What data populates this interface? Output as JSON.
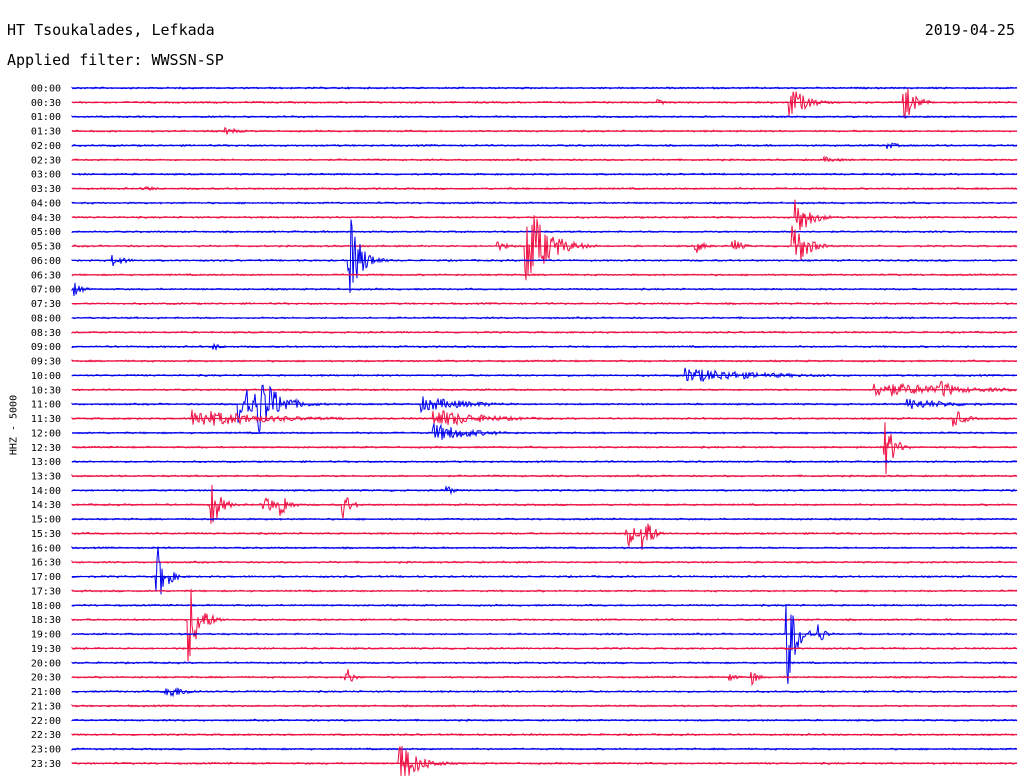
{
  "header": {
    "station": "HT Tsoukalades, Lefkada",
    "filter": "Applied filter: WWSSN-SP",
    "date": "2019-04-25"
  },
  "chart_data": {
    "type": "line",
    "title": "HT Tsoukalades, Lefkada",
    "subtitle": "Applied filter: WWSSN-SP",
    "ylabel": "HHZ - 5000",
    "colors": {
      "even_rows": "#0000ee",
      "odd_rows": "#ee1144"
    },
    "rows": [
      "00:00",
      "00:30",
      "01:00",
      "01:30",
      "02:00",
      "02:30",
      "03:00",
      "03:30",
      "04:00",
      "04:30",
      "05:00",
      "05:30",
      "06:00",
      "06:30",
      "07:00",
      "07:30",
      "08:00",
      "08:30",
      "09:00",
      "09:30",
      "10:00",
      "10:30",
      "11:00",
      "11:30",
      "12:00",
      "12:30",
      "13:00",
      "13:30",
      "14:00",
      "14:30",
      "15:00",
      "15:30",
      "16:00",
      "16:30",
      "17:00",
      "17:30",
      "18:00",
      "18:30",
      "19:00",
      "19:30",
      "20:00",
      "20:30",
      "21:00",
      "21:30",
      "22:00",
      "22:30",
      "23:00",
      "23:30"
    ],
    "events": [
      {
        "row": "00:30",
        "minute": 22.8,
        "amplitude": 18,
        "duration": 1.2
      },
      {
        "row": "00:30",
        "minute": 26.4,
        "amplitude": 22,
        "duration": 0.8
      },
      {
        "row": "00:30",
        "minute": 18.6,
        "amplitude": 3,
        "duration": 0.6
      },
      {
        "row": "01:30",
        "minute": 4.9,
        "amplitude": 4,
        "duration": 1.0
      },
      {
        "row": "02:00",
        "minute": 25.9,
        "amplitude": 4,
        "duration": 0.8
      },
      {
        "row": "02:30",
        "minute": 23.9,
        "amplitude": 3,
        "duration": 1.5
      },
      {
        "row": "03:30",
        "minute": 2.3,
        "amplitude": 4,
        "duration": 0.7
      },
      {
        "row": "04:30",
        "minute": 23.0,
        "amplitude": 22,
        "duration": 1.0
      },
      {
        "row": "05:30",
        "minute": 14.4,
        "amplitude": 50,
        "duration": 1.6
      },
      {
        "row": "05:30",
        "minute": 14.6,
        "amplitude": 12,
        "duration": 1.2
      },
      {
        "row": "05:30",
        "minute": 22.9,
        "amplitude": 30,
        "duration": 0.9
      },
      {
        "row": "05:30",
        "minute": 19.8,
        "amplitude": 8,
        "duration": 0.6
      },
      {
        "row": "05:30",
        "minute": 21.0,
        "amplitude": 8,
        "duration": 0.6
      },
      {
        "row": "05:30",
        "minute": 13.5,
        "amplitude": 5,
        "duration": 1.0
      },
      {
        "row": "06:00",
        "minute": 8.8,
        "amplitude": 50,
        "duration": 0.8
      },
      {
        "row": "06:00",
        "minute": 1.3,
        "amplitude": 6,
        "duration": 1.0
      },
      {
        "row": "07:00",
        "minute": 0.1,
        "amplitude": 8,
        "duration": 0.5
      },
      {
        "row": "09:00",
        "minute": 4.5,
        "amplitude": 4,
        "duration": 0.6
      },
      {
        "row": "10:00",
        "minute": 19.5,
        "amplitude": 8,
        "duration": 6.0
      },
      {
        "row": "10:00",
        "minute": 31.0,
        "amplitude": 6,
        "duration": 1.0
      },
      {
        "row": "10:30",
        "minute": 25.5,
        "amplitude": 8,
        "duration": 7.0
      },
      {
        "row": "10:30",
        "minute": 27.6,
        "amplitude": 10,
        "duration": 1.2
      },
      {
        "row": "11:00",
        "minute": 5.3,
        "amplitude": 22,
        "duration": 2.5
      },
      {
        "row": "11:00",
        "minute": 5.9,
        "amplitude": 35,
        "duration": 1.5
      },
      {
        "row": "11:00",
        "minute": 11.1,
        "amplitude": 8,
        "duration": 4.0
      },
      {
        "row": "11:00",
        "minute": 26.5,
        "amplitude": 6,
        "duration": 4.0
      },
      {
        "row": "11:30",
        "minute": 3.8,
        "amplitude": 10,
        "duration": 6.0
      },
      {
        "row": "11:30",
        "minute": 11.5,
        "amplitude": 10,
        "duration": 4.0
      },
      {
        "row": "11:30",
        "minute": 28.0,
        "amplitude": 10,
        "duration": 0.8
      },
      {
        "row": "12:00",
        "minute": 11.5,
        "amplitude": 10,
        "duration": 3.0
      },
      {
        "row": "12:30",
        "minute": 25.8,
        "amplitude": 32,
        "duration": 0.6
      },
      {
        "row": "14:00",
        "minute": 11.9,
        "amplitude": 6,
        "duration": 0.4
      },
      {
        "row": "14:30",
        "minute": 4.4,
        "amplitude": 30,
        "duration": 0.6
      },
      {
        "row": "14:30",
        "minute": 6.1,
        "amplitude": 16,
        "duration": 0.5
      },
      {
        "row": "14:30",
        "minute": 6.6,
        "amplitude": 18,
        "duration": 0.5
      },
      {
        "row": "14:30",
        "minute": 8.6,
        "amplitude": 16,
        "duration": 0.5
      },
      {
        "row": "15:30",
        "minute": 17.6,
        "amplitude": 18,
        "duration": 0.5
      },
      {
        "row": "15:30",
        "minute": 18.1,
        "amplitude": 32,
        "duration": 0.5
      },
      {
        "row": "17:00",
        "minute": 2.7,
        "amplitude": 34,
        "duration": 0.6
      },
      {
        "row": "18:30",
        "minute": 3.7,
        "amplitude": 45,
        "duration": 0.8
      },
      {
        "row": "19:00",
        "minute": 22.7,
        "amplitude": 60,
        "duration": 0.6
      },
      {
        "row": "19:00",
        "minute": 23.7,
        "amplitude": 12,
        "duration": 0.4
      },
      {
        "row": "20:30",
        "minute": 8.7,
        "amplitude": 12,
        "duration": 0.4
      },
      {
        "row": "20:30",
        "minute": 21.6,
        "amplitude": 8,
        "duration": 0.4
      },
      {
        "row": "20:30",
        "minute": 20.9,
        "amplitude": 5,
        "duration": 0.4
      },
      {
        "row": "21:00",
        "minute": 3.0,
        "amplitude": 8,
        "duration": 1.5
      },
      {
        "row": "23:30",
        "minute": 10.4,
        "amplitude": 24,
        "duration": 1.4
      }
    ]
  }
}
